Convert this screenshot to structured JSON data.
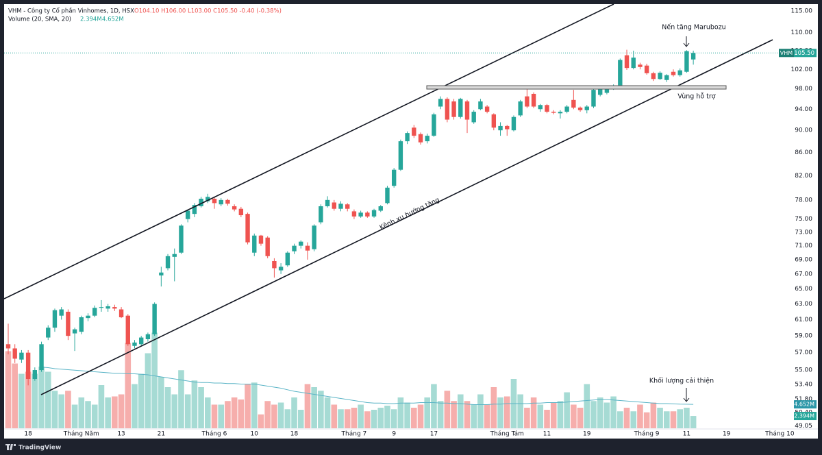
{
  "chart_data": {
    "type": "candlestick",
    "symbol": "VHM",
    "legend_title": "VHM - Công ty Cổ phần Vinhomes, 1D, HSX",
    "legend_ohlc": "O104.10 H106.00 L103.00 C105.50 -0.40 (-0.38%)",
    "volume_title": "Volume (20, SMA, 20)",
    "volume_label": "2.394M",
    "sma_label": "4.652M",
    "price_label": "105.50",
    "annotations": {
      "marubozu": "Nến tăng Marubozu",
      "support": "Vùng hỗ trợ",
      "channel": "Kênh xu hướng tăng",
      "volume": "Khối lượng cải thiện"
    },
    "footer": "TradingView",
    "log": true,
    "grid": false,
    "up_color": "#26a69a",
    "down_color": "#ef5350",
    "volume_up_color": "#a6dbd4",
    "volume_down_color": "#f6aeac",
    "sma_color": "#5ab4c6",
    "ylim": [
      48.8,
      116.8
    ],
    "yticks": [
      {
        "value": 115,
        "label": "115.00"
      },
      {
        "value": 110,
        "label": "110.00"
      },
      {
        "value": 106,
        "label": "106.00"
      },
      {
        "value": 102,
        "label": "102.00"
      },
      {
        "value": 98,
        "label": "98.00"
      },
      {
        "value": 94,
        "label": "94.00"
      },
      {
        "value": 90,
        "label": "90.00"
      },
      {
        "value": 86,
        "label": "86.00"
      },
      {
        "value": 82,
        "label": "82.00"
      },
      {
        "value": 78,
        "label": "78.00"
      },
      {
        "value": 75,
        "label": "75.00"
      },
      {
        "value": 73,
        "label": "73.00"
      },
      {
        "value": 71,
        "label": "71.00"
      },
      {
        "value": 69,
        "label": "69.00"
      },
      {
        "value": 67,
        "label": "67.00"
      },
      {
        "value": 65,
        "label": "65.00"
      },
      {
        "value": 63,
        "label": "63.00"
      },
      {
        "value": 61,
        "label": "61.00"
      },
      {
        "value": 59,
        "label": "59.00"
      },
      {
        "value": 57,
        "label": "57.00"
      },
      {
        "value": 55,
        "label": "55.00"
      },
      {
        "value": 53.4,
        "label": "53.40"
      },
      {
        "value": 51.8,
        "label": "51.80"
      },
      {
        "value": 50.4,
        "label": "50.40"
      },
      {
        "value": 49.05,
        "label": "49.05"
      }
    ],
    "volume_ylim": [
      0,
      20
    ],
    "categories": [
      null,
      null,
      null,
      "18",
      null,
      null,
      null,
      null,
      null,
      null,
      null,
      "Tháng Năm",
      null,
      null,
      null,
      null,
      null,
      "13",
      null,
      null,
      null,
      null,
      null,
      "21",
      null,
      null,
      null,
      null,
      null,
      null,
      null,
      "Tháng 6",
      null,
      null,
      null,
      null,
      null,
      "10",
      null,
      null,
      null,
      null,
      null,
      "18",
      null,
      null,
      null,
      null,
      null,
      null,
      null,
      null,
      "Tháng 7",
      null,
      null,
      null,
      null,
      null,
      "9",
      null,
      null,
      null,
      null,
      null,
      "17",
      null,
      null,
      null,
      null,
      null,
      null,
      null,
      null,
      null,
      null,
      "Tháng Tám",
      null,
      null,
      null,
      null,
      null,
      "11",
      null,
      null,
      null,
      null,
      null,
      "19",
      null,
      null,
      null,
      null,
      null,
      null,
      null,
      null,
      "Tháng 9",
      null,
      null,
      null,
      null,
      null,
      "11",
      null,
      null,
      null,
      null,
      null,
      "19",
      null,
      null,
      null,
      null,
      null,
      null,
      null,
      "Tháng 10"
    ],
    "ohlc": [
      [
        58,
        60.5,
        56.8,
        57.5
      ],
      [
        57.5,
        58,
        55.8,
        56.3
      ],
      [
        56.2,
        57.3,
        55.8,
        57
      ],
      [
        57,
        57.3,
        53.3,
        54
      ],
      [
        54,
        55.3,
        53.8,
        55
      ],
      [
        55,
        58.3,
        54.8,
        58
      ],
      [
        58.8,
        60.3,
        58.5,
        60
      ],
      [
        60,
        62.4,
        59.5,
        62.2
      ],
      [
        61.5,
        62.6,
        61,
        62.3
      ],
      [
        62,
        62.3,
        58.5,
        59
      ],
      [
        59.3,
        60,
        57.2,
        59.8
      ],
      [
        59.5,
        61.5,
        59.2,
        61.3
      ],
      [
        61.2,
        61.8,
        60.8,
        61.5
      ],
      [
        61.5,
        62.8,
        61.3,
        62.5
      ],
      [
        62.5,
        63.5,
        62,
        62.6
      ],
      [
        62.4,
        63,
        62,
        62.7
      ],
      [
        62.6,
        62.9,
        62.1,
        62.4
      ],
      [
        62.3,
        62.6,
        61.2,
        61.3
      ],
      [
        61.5,
        61.7,
        57.8,
        58
      ],
      [
        57.8,
        58.5,
        57.5,
        58.2
      ],
      [
        58,
        59,
        57.8,
        58.8
      ],
      [
        58.6,
        59.4,
        58.3,
        59.2
      ],
      [
        59.2,
        63.2,
        59,
        63
      ],
      [
        66.8,
        68,
        65.3,
        67.2
      ],
      [
        67.8,
        69.8,
        67.5,
        69.5
      ],
      [
        69.4,
        70.6,
        66,
        69.8
      ],
      [
        70,
        74.2,
        69.8,
        74
      ],
      [
        75,
        76.5,
        74.5,
        76.3
      ],
      [
        75.8,
        77.5,
        75.3,
        77.2
      ],
      [
        77,
        78.5,
        76.8,
        78.2
      ],
      [
        77.8,
        79,
        77.5,
        78.5
      ],
      [
        78.2,
        78.5,
        76.6,
        77.5
      ],
      [
        77.3,
        78.3,
        77,
        78
      ],
      [
        78,
        78.2,
        77.1,
        77.4
      ],
      [
        77,
        77.3,
        76.2,
        76.5
      ],
      [
        76.6,
        76.9,
        75.3,
        75.6
      ],
      [
        75.8,
        76,
        71.2,
        71.5
      ],
      [
        70,
        72.8,
        69.5,
        72.5
      ],
      [
        72.5,
        72.6,
        71,
        71.3
      ],
      [
        72.2,
        72.4,
        69.2,
        69.5
      ],
      [
        68.8,
        69.2,
        66.5,
        67.8
      ],
      [
        67.5,
        68.5,
        67,
        68
      ],
      [
        68.2,
        70.2,
        68,
        70
      ],
      [
        70.2,
        71.3,
        69.8,
        71
      ],
      [
        71,
        71.8,
        70.6,
        71.6
      ],
      [
        71,
        71.5,
        69,
        70.3
      ],
      [
        70.5,
        74.2,
        70.2,
        74
      ],
      [
        74.5,
        77.3,
        74.2,
        77
      ],
      [
        77,
        78.6,
        76.8,
        78
      ],
      [
        77.6,
        78,
        76.3,
        76.6
      ],
      [
        76.6,
        77.8,
        76.2,
        77.4
      ],
      [
        77.3,
        77.5,
        76.2,
        76.6
      ],
      [
        76.2,
        76.5,
        75,
        75.4
      ],
      [
        75.4,
        76.3,
        75.2,
        76
      ],
      [
        76,
        76.2,
        75.2,
        75.4
      ],
      [
        75.4,
        76.6,
        75.2,
        76.4
      ],
      [
        76.3,
        77.2,
        76.1,
        77
      ],
      [
        77.5,
        80.3,
        77.3,
        80
      ],
      [
        80.3,
        83.3,
        80,
        83
      ],
      [
        83,
        88.3,
        82.8,
        88
      ],
      [
        88,
        89.8,
        87.5,
        89.5
      ],
      [
        90.5,
        91,
        88.6,
        89
      ],
      [
        89.3,
        89.6,
        87.4,
        87.8
      ],
      [
        88,
        89.4,
        87.6,
        89
      ],
      [
        89,
        93.3,
        88.8,
        93
      ],
      [
        94.5,
        96.5,
        94,
        96
      ],
      [
        96,
        96.3,
        91.5,
        92
      ],
      [
        95.5,
        96,
        92,
        92.5
      ],
      [
        92.5,
        96.2,
        92.2,
        96
      ],
      [
        95.5,
        95.8,
        89.5,
        92
      ],
      [
        91.5,
        93.8,
        91.2,
        93.5
      ],
      [
        94,
        96,
        93.8,
        95.5
      ],
      [
        94.5,
        94.8,
        93.2,
        93.5
      ],
      [
        93,
        93.2,
        90,
        90.5
      ],
      [
        90,
        91.5,
        89,
        90.8
      ],
      [
        90.8,
        91,
        89,
        90.2
      ],
      [
        90,
        92.8,
        89.8,
        92.5
      ],
      [
        92.8,
        95.8,
        92.5,
        95.5
      ],
      [
        96.5,
        98.3,
        94.2,
        94.5
      ],
      [
        97,
        97.3,
        94.2,
        94.5
      ],
      [
        94,
        95,
        93.5,
        94.8
      ],
      [
        94.8,
        95,
        93.2,
        93.5
      ],
      [
        93.5,
        93.8,
        93,
        93.3
      ],
      [
        93.2,
        93.8,
        92.2,
        93.5
      ],
      [
        93.5,
        94.8,
        93.2,
        94.5
      ],
      [
        95.8,
        97.8,
        94,
        94.3
      ],
      [
        94.3,
        94.5,
        93.5,
        93.8
      ],
      [
        93.8,
        94.8,
        93.2,
        94.5
      ],
      [
        94.5,
        98.1,
        94.2,
        97.8
      ],
      [
        96.8,
        98.6,
        96.5,
        98.3
      ],
      [
        97.2,
        98.5,
        96.9,
        98.2
      ],
      [
        98,
        98.9,
        97.8,
        98.6
      ],
      [
        98.3,
        104.3,
        98,
        104
      ],
      [
        105,
        106.2,
        101.9,
        102.3
      ],
      [
        102.3,
        106,
        102,
        104.5
      ],
      [
        103,
        103.4,
        102,
        102.5
      ],
      [
        102.8,
        103.2,
        100.9,
        101.2
      ],
      [
        101.2,
        101.5,
        99.6,
        100
      ],
      [
        100,
        101.6,
        99.8,
        101.3
      ],
      [
        99.8,
        101,
        99.4,
        100.8
      ],
      [
        101.5,
        102,
        100.5,
        100.8
      ],
      [
        100.8,
        102.2,
        100.5,
        101.8
      ],
      [
        101.5,
        106.1,
        101.3,
        105.9
      ],
      [
        104.1,
        106,
        103,
        105.5
      ],
      null,
      null,
      null,
      null,
      null,
      null,
      null,
      null,
      null,
      null,
      null,
      null,
      null
    ],
    "volume": [
      15,
      12.6,
      10.6,
      11,
      10.6,
      12,
      11,
      7.3,
      6.6,
      7.3,
      4.6,
      6,
      5.3,
      4.6,
      8.4,
      6,
      6.2,
      6.6,
      16.6,
      8.6,
      10.6,
      14.6,
      18.6,
      10,
      8,
      6.6,
      11.3,
      6.6,
      9.3,
      8,
      6,
      4.6,
      4.6,
      5.3,
      6,
      5.6,
      8.6,
      8.9,
      2.7,
      5.3,
      4.6,
      5,
      3.7,
      6,
      3.6,
      8.6,
      8,
      7.3,
      6,
      4.6,
      3.7,
      3.7,
      4,
      4.6,
      3.3,
      3.6,
      4,
      4.4,
      3.7,
      6,
      5,
      4,
      4.6,
      6,
      8.6,
      5.3,
      7.3,
      5.3,
      6.6,
      5.3,
      4.6,
      6.6,
      4.6,
      8,
      6,
      6.2,
      9.6,
      6.6,
      4,
      6,
      4.6,
      3.6,
      5,
      5.3,
      7,
      4.6,
      4,
      8.6,
      5.3,
      6,
      5,
      6.2,
      3.3,
      4,
      3.3,
      4.6,
      3.1,
      5,
      4,
      3.3,
      3.3,
      3.7,
      4,
      2.394,
      null,
      null,
      null,
      null,
      null,
      null,
      null,
      null,
      null,
      null,
      null,
      null,
      null
    ],
    "volume_sma": [
      null,
      null,
      null,
      null,
      null,
      11.9,
      11.8,
      11.6,
      11.5,
      11.4,
      11.3,
      11.2,
      11.1,
      11,
      10.9,
      10.8,
      10.7,
      10.7,
      10.6,
      10.6,
      10.5,
      10.4,
      10.2,
      10,
      9.8,
      9.6,
      9.4,
      9.2,
      9,
      8.9,
      8.9,
      8.8,
      8.8,
      8.7,
      8.7,
      8.6,
      8.6,
      8.6,
      8.4,
      8.2,
      8,
      7.8,
      7.5,
      7.2,
      7,
      6.8,
      6.6,
      6.4,
      6.2,
      6,
      5.8,
      5.6,
      5.4,
      5.2,
      5,
      4.9,
      4.9,
      4.8,
      4.8,
      4.9,
      4.9,
      4.9,
      5,
      5,
      5,
      4.9,
      4.9,
      4.8,
      4.8,
      4.7,
      4.6,
      4.6,
      4.6,
      4.7,
      4.7,
      4.8,
      4.8,
      4.8,
      4.8,
      4.9,
      4.9,
      5,
      5,
      5,
      5.1,
      5.2,
      5.3,
      5.4,
      5.5,
      5.6,
      5.6,
      5.5,
      5.4,
      5.3,
      5.2,
      5.1,
      5,
      4.9,
      4.8,
      4.8,
      4.75,
      4.7,
      4.68,
      4.652,
      null,
      null,
      null,
      null,
      null,
      null,
      null,
      null,
      null,
      null,
      null,
      null,
      null
    ]
  }
}
